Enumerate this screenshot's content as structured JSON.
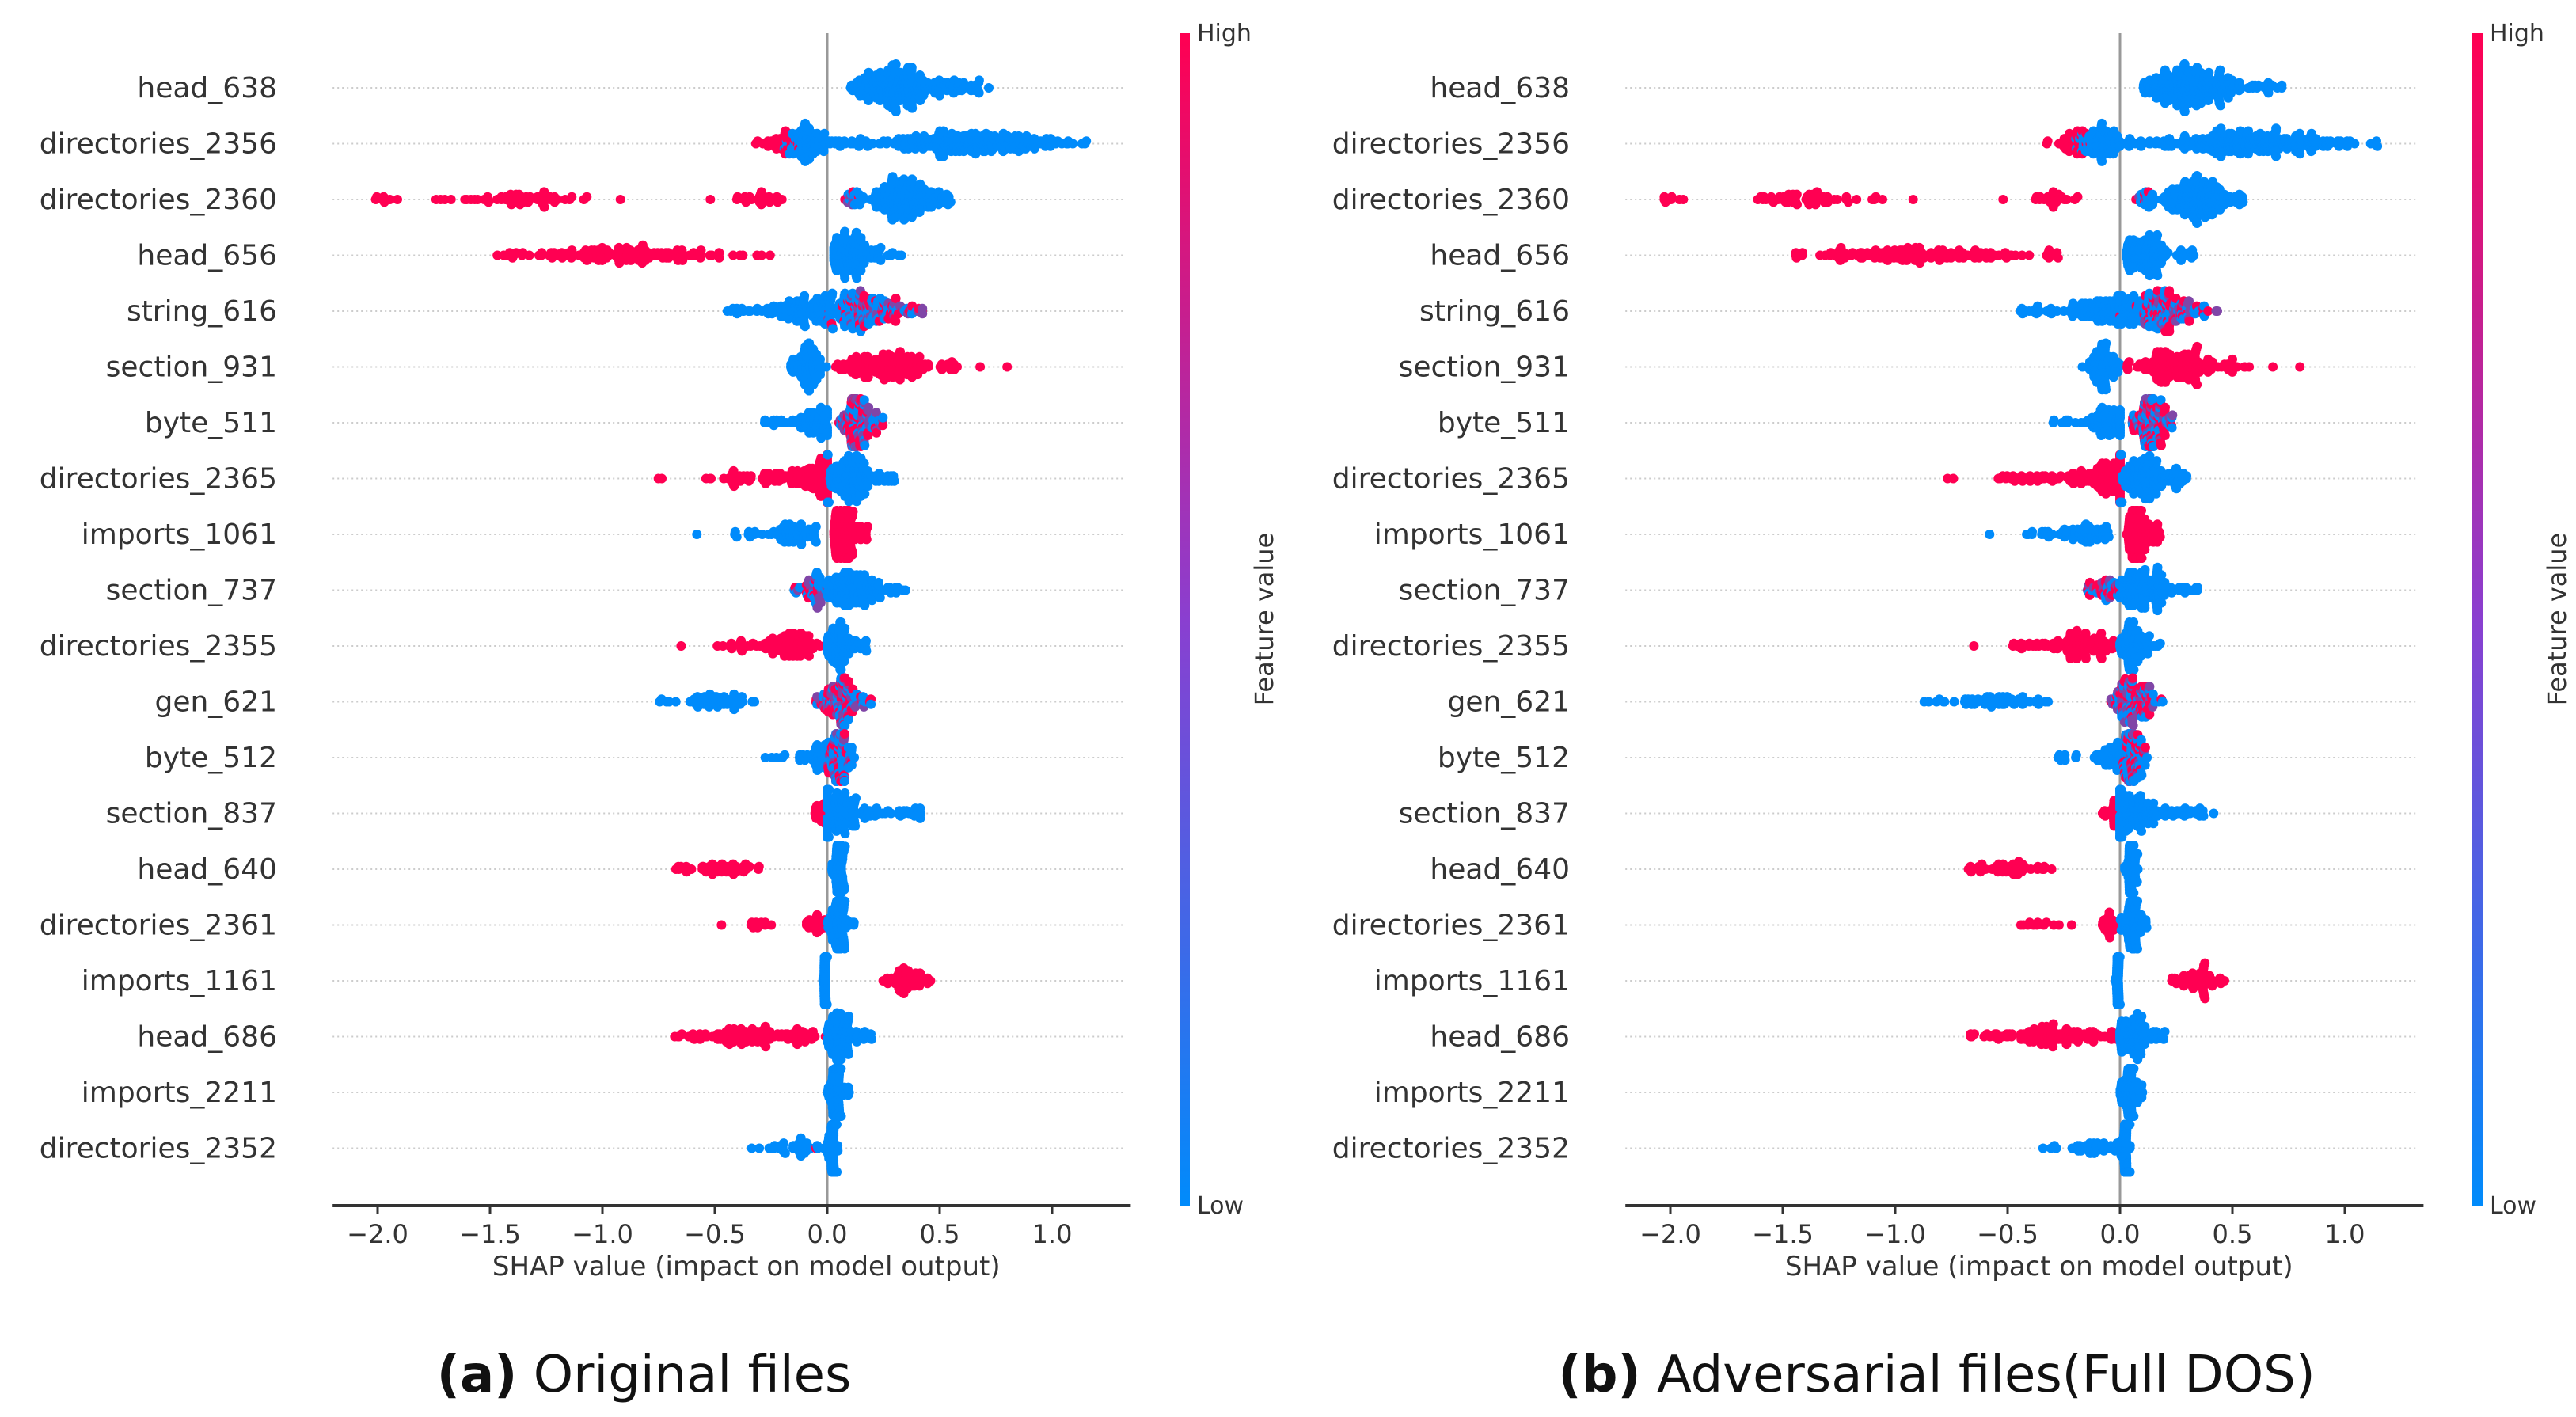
{
  "colors": {
    "high": "#ff0052",
    "low": "#008bfb",
    "mid": "#8a3fd0",
    "axis": "#333333",
    "grid": "#cccccc"
  },
  "chart_data": [
    {
      "type": "scatter",
      "subtype": "shap-beeswarm",
      "caption_letter": "(a)",
      "caption_text": " Original files",
      "xlabel": "SHAP value (impact on model output)",
      "xlim": [
        -2.2,
        1.35
      ],
      "xticks": [
        -2.0,
        -1.5,
        -1.0,
        -0.5,
        0.0,
        0.5,
        1.0
      ],
      "xtick_labels": [
        "−2.0",
        "−1.5",
        "−1.0",
        "−0.5",
        "0.0",
        "0.5",
        "1.0"
      ],
      "colorbar": {
        "label": "Feature value",
        "high": "High",
        "low": "Low"
      },
      "features": [
        {
          "name": "head_638",
          "segments": [
            [
              0.1,
              0.72,
              0.3,
              260,
              "low"
            ]
          ]
        },
        {
          "name": "directories_2356",
          "segments": [
            [
              -0.33,
              -0.12,
              -0.2,
              40,
              "high"
            ],
            [
              -0.2,
              0.05,
              -0.08,
              90,
              "low"
            ],
            [
              0.05,
              1.17,
              0.6,
              260,
              "low"
            ]
          ]
        },
        {
          "name": "directories_2360",
          "segments": [
            [
              -2.03,
              -1.9,
              -2.0,
              8,
              "high"
            ],
            [
              -1.75,
              -1.05,
              -1.4,
              60,
              "high"
            ],
            [
              -0.92,
              -0.92,
              -0.92,
              1,
              "high"
            ],
            [
              -0.52,
              -0.52,
              -0.52,
              1,
              "high"
            ],
            [
              -0.43,
              -0.18,
              -0.3,
              25,
              "high"
            ],
            [
              0.05,
              0.15,
              0.1,
              15,
              "mixed"
            ],
            [
              0.12,
              0.55,
              0.33,
              200,
              "low"
            ]
          ]
        },
        {
          "name": "head_656",
          "segments": [
            [
              -1.47,
              -0.25,
              -0.9,
              150,
              "high"
            ],
            [
              0.03,
              0.33,
              0.1,
              130,
              "low"
            ]
          ]
        },
        {
          "name": "string_616",
          "segments": [
            [
              -0.45,
              0.3,
              0.0,
              200,
              "low"
            ],
            [
              0.0,
              0.45,
              0.2,
              120,
              "mixed"
            ]
          ]
        },
        {
          "name": "section_931",
          "segments": [
            [
              -0.17,
              0.0,
              -0.08,
              90,
              "low"
            ],
            [
              0.03,
              0.58,
              0.25,
              170,
              "high"
            ],
            [
              0.68,
              0.68,
              0.68,
              1,
              "high"
            ],
            [
              0.8,
              0.8,
              0.8,
              1,
              "high"
            ]
          ]
        },
        {
          "name": "byte_511",
          "segments": [
            [
              -0.3,
              0.0,
              -0.05,
              80,
              "low"
            ],
            [
              0.05,
              0.25,
              0.14,
              150,
              "mixed"
            ]
          ]
        },
        {
          "name": "directories_2365",
          "segments": [
            [
              -0.8,
              -0.7,
              -0.75,
              2,
              "high"
            ],
            [
              -0.55,
              0.0,
              -0.05,
              150,
              "high"
            ],
            [
              0.0,
              0.3,
              0.1,
              160,
              "low"
            ]
          ]
        },
        {
          "name": "imports_1061",
          "segments": [
            [
              -0.58,
              -0.58,
              -0.58,
              1,
              "low"
            ],
            [
              -0.42,
              -0.05,
              -0.15,
              70,
              "low"
            ],
            [
              0.03,
              0.18,
              0.07,
              140,
              "high"
            ]
          ]
        },
        {
          "name": "section_737",
          "segments": [
            [
              -0.15,
              0.0,
              -0.05,
              50,
              "mixed"
            ],
            [
              0.0,
              0.35,
              0.1,
              150,
              "low"
            ]
          ]
        },
        {
          "name": "directories_2355",
          "segments": [
            [
              -0.65,
              -0.65,
              -0.65,
              1,
              "high"
            ],
            [
              -0.5,
              0.0,
              -0.15,
              110,
              "high"
            ],
            [
              0.0,
              0.18,
              0.05,
              100,
              "low"
            ]
          ]
        },
        {
          "name": "gen_621",
          "segments": [
            [
              -0.88,
              -0.32,
              -0.5,
              60,
              "low"
            ],
            [
              -0.05,
              0.2,
              0.06,
              140,
              "mixed"
            ]
          ]
        },
        {
          "name": "byte_512",
          "segments": [
            [
              -0.28,
              0.12,
              0.0,
              80,
              "low"
            ],
            [
              0.0,
              0.12,
              0.05,
              80,
              "mixed"
            ]
          ]
        },
        {
          "name": "section_837",
          "segments": [
            [
              -0.08,
              0.0,
              -0.03,
              25,
              "high"
            ],
            [
              0.0,
              0.42,
              0.05,
              160,
              "low"
            ]
          ]
        },
        {
          "name": "head_640",
          "segments": [
            [
              -0.68,
              -0.3,
              -0.45,
              50,
              "high"
            ],
            [
              0.02,
              0.08,
              0.05,
              90,
              "low"
            ]
          ]
        },
        {
          "name": "directories_2361",
          "segments": [
            [
              -0.5,
              -0.2,
              -0.35,
              12,
              "high"
            ],
            [
              -0.1,
              0.0,
              -0.05,
              25,
              "high"
            ],
            [
              0.0,
              0.12,
              0.05,
              100,
              "low"
            ]
          ]
        },
        {
          "name": "imports_1161",
          "segments": [
            [
              -0.02,
              0.0,
              -0.01,
              60,
              "low"
            ],
            [
              0.23,
              0.47,
              0.35,
              60,
              "high"
            ]
          ]
        },
        {
          "name": "head_686",
          "segments": [
            [
              -0.68,
              0.0,
              -0.3,
              120,
              "high"
            ],
            [
              0.0,
              0.2,
              0.05,
              110,
              "low"
            ]
          ]
        },
        {
          "name": "imports_2211",
          "segments": [
            [
              0.0,
              0.1,
              0.04,
              100,
              "low"
            ]
          ]
        },
        {
          "name": "directories_2352",
          "segments": [
            [
              -0.35,
              0.0,
              -0.1,
              40,
              "low"
            ],
            [
              -0.05,
              -0.05,
              -0.05,
              1,
              "high"
            ],
            [
              0.0,
              0.05,
              0.03,
              100,
              "low"
            ]
          ]
        }
      ]
    },
    {
      "type": "scatter",
      "subtype": "shap-beeswarm",
      "caption_letter": "(b)",
      "caption_text": " Adversarial files(Full DOS)",
      "xlabel": "SHAP value (impact on model output)",
      "xlim": [
        -2.2,
        1.35
      ],
      "xticks": [
        -2.0,
        -1.5,
        -1.0,
        -0.5,
        0.0,
        0.5,
        1.0
      ],
      "xtick_labels": [
        "−2.0",
        "−1.5",
        "−1.0",
        "−0.5",
        "0.0",
        "0.5",
        "1.0"
      ],
      "colorbar": {
        "label": "Feature value",
        "high": "High",
        "low": "Low"
      },
      "features": [
        {
          "name": "head_638",
          "segments": [
            [
              0.1,
              0.72,
              0.3,
              260,
              "low"
            ]
          ]
        },
        {
          "name": "directories_2356",
          "segments": [
            [
              -0.33,
              -0.12,
              -0.2,
              40,
              "high"
            ],
            [
              -0.2,
              0.05,
              -0.08,
              90,
              "low"
            ],
            [
              0.05,
              1.15,
              0.6,
              260,
              "low"
            ]
          ]
        },
        {
          "name": "directories_2360",
          "segments": [
            [
              -2.03,
              -1.9,
              -2.0,
              8,
              "high"
            ],
            [
              -1.75,
              -1.05,
              -1.4,
              60,
              "high"
            ],
            [
              -0.92,
              -0.92,
              -0.92,
              1,
              "high"
            ],
            [
              -0.52,
              -0.52,
              -0.52,
              1,
              "high"
            ],
            [
              -0.43,
              -0.18,
              -0.3,
              25,
              "high"
            ],
            [
              0.05,
              0.15,
              0.1,
              15,
              "mixed"
            ],
            [
              0.12,
              0.55,
              0.33,
              200,
              "low"
            ]
          ]
        },
        {
          "name": "head_656",
          "segments": [
            [
              -1.47,
              -0.25,
              -0.9,
              150,
              "high"
            ],
            [
              0.03,
              0.33,
              0.1,
              130,
              "low"
            ]
          ]
        },
        {
          "name": "string_616",
          "segments": [
            [
              -0.45,
              0.3,
              0.0,
              200,
              "low"
            ],
            [
              0.0,
              0.45,
              0.2,
              120,
              "mixed"
            ]
          ]
        },
        {
          "name": "section_931",
          "segments": [
            [
              -0.17,
              0.0,
              -0.08,
              90,
              "low"
            ],
            [
              0.03,
              0.58,
              0.25,
              170,
              "high"
            ],
            [
              0.68,
              0.68,
              0.68,
              1,
              "high"
            ],
            [
              0.8,
              0.8,
              0.8,
              1,
              "high"
            ]
          ]
        },
        {
          "name": "byte_511",
          "segments": [
            [
              -0.3,
              0.0,
              -0.05,
              80,
              "low"
            ],
            [
              0.05,
              0.25,
              0.14,
              150,
              "mixed"
            ]
          ]
        },
        {
          "name": "directories_2365",
          "segments": [
            [
              -0.8,
              -0.7,
              -0.75,
              2,
              "high"
            ],
            [
              -0.55,
              0.0,
              -0.05,
              150,
              "high"
            ],
            [
              0.0,
              0.3,
              0.1,
              160,
              "low"
            ]
          ]
        },
        {
          "name": "imports_1061",
          "segments": [
            [
              -0.58,
              -0.58,
              -0.58,
              1,
              "low"
            ],
            [
              -0.42,
              -0.05,
              -0.15,
              70,
              "low"
            ],
            [
              0.03,
              0.18,
              0.07,
              140,
              "high"
            ]
          ]
        },
        {
          "name": "section_737",
          "segments": [
            [
              -0.15,
              0.0,
              -0.05,
              50,
              "mixed"
            ],
            [
              0.0,
              0.35,
              0.1,
              150,
              "low"
            ]
          ]
        },
        {
          "name": "directories_2355",
          "segments": [
            [
              -0.65,
              -0.65,
              -0.65,
              1,
              "high"
            ],
            [
              -0.5,
              0.0,
              -0.15,
              110,
              "high"
            ],
            [
              0.0,
              0.18,
              0.05,
              100,
              "low"
            ]
          ]
        },
        {
          "name": "gen_621",
          "segments": [
            [
              -0.88,
              -0.32,
              -0.5,
              60,
              "low"
            ],
            [
              -0.05,
              0.2,
              0.06,
              140,
              "mixed"
            ]
          ]
        },
        {
          "name": "byte_512",
          "segments": [
            [
              -0.28,
              0.12,
              0.0,
              80,
              "low"
            ],
            [
              0.0,
              0.12,
              0.05,
              80,
              "mixed"
            ]
          ]
        },
        {
          "name": "section_837",
          "segments": [
            [
              -0.08,
              0.0,
              -0.03,
              25,
              "high"
            ],
            [
              0.0,
              0.42,
              0.05,
              160,
              "low"
            ]
          ]
        },
        {
          "name": "head_640",
          "segments": [
            [
              -0.68,
              -0.3,
              -0.45,
              50,
              "high"
            ],
            [
              0.02,
              0.08,
              0.05,
              90,
              "low"
            ]
          ]
        },
        {
          "name": "directories_2361",
          "segments": [
            [
              -0.5,
              -0.2,
              -0.35,
              12,
              "high"
            ],
            [
              -0.1,
              0.0,
              -0.05,
              25,
              "high"
            ],
            [
              0.0,
              0.12,
              0.05,
              100,
              "low"
            ]
          ]
        },
        {
          "name": "imports_1161",
          "segments": [
            [
              -0.02,
              0.0,
              -0.01,
              60,
              "low"
            ],
            [
              0.23,
              0.47,
              0.35,
              60,
              "high"
            ]
          ]
        },
        {
          "name": "head_686",
          "segments": [
            [
              -0.68,
              0.0,
              -0.3,
              120,
              "high"
            ],
            [
              0.0,
              0.2,
              0.05,
              110,
              "low"
            ]
          ]
        },
        {
          "name": "imports_2211",
          "segments": [
            [
              0.0,
              0.1,
              0.04,
              100,
              "low"
            ]
          ]
        },
        {
          "name": "directories_2352",
          "segments": [
            [
              -0.35,
              0.0,
              -0.1,
              40,
              "low"
            ],
            [
              0.0,
              0.05,
              0.03,
              100,
              "low"
            ]
          ]
        }
      ]
    }
  ]
}
